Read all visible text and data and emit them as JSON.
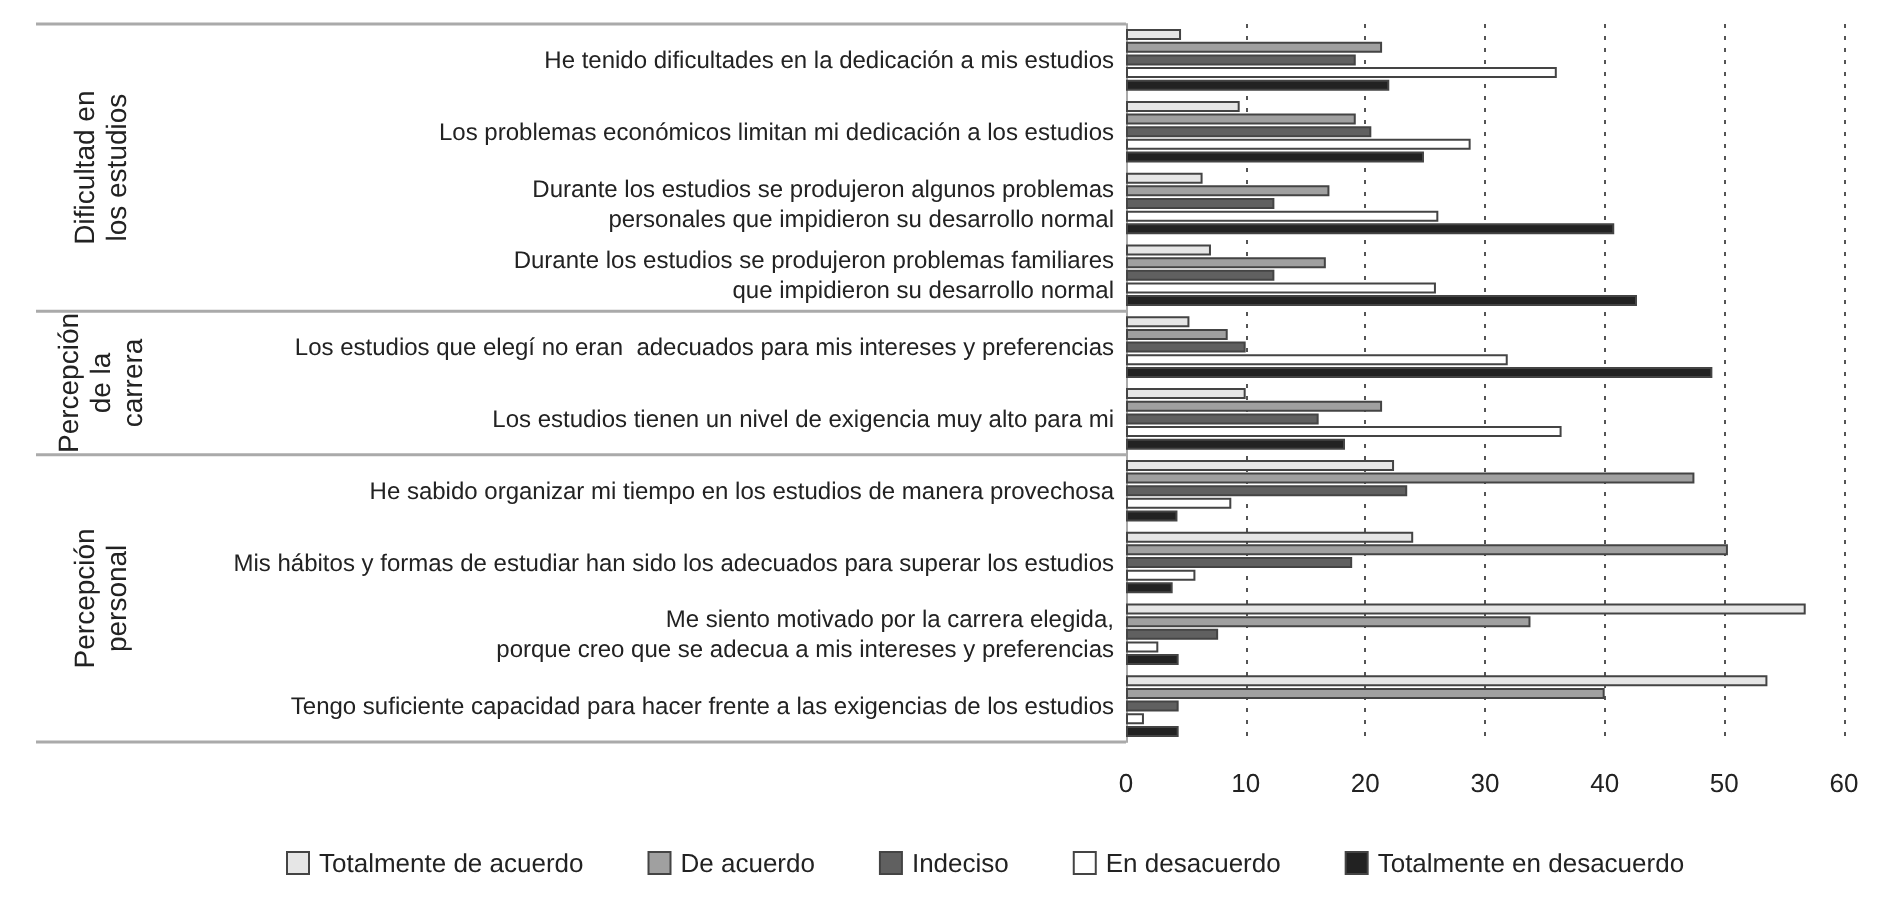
{
  "chart_data": {
    "type": "bar",
    "orientation": "horizontal",
    "categories": [
      "He tenido dificultades en la dedicación a mis estudios",
      "Los problemas económicos limitan mi dedicación a los estudios",
      "Durante los estudios se produjeron algunos problemas\npersonales que impidieron su desarrollo normal",
      "Durante los estudios se produjeron problemas familiares\nque impidieron su desarrollo normal",
      "Los estudios que elegí no eran  adecuados para mis intereses y preferencias",
      "Los estudios tienen un nivel de exigencia muy alto para mi",
      "He sabido organizar mi tiempo en los estudios de manera provechosa",
      "Mis hábitos y formas de estudiar han sido los adecuados para superar los estudios",
      "Me siento motivado por la carrera elegida,\nporque creo que se adecua a mis intereses y preferencias",
      "Tengo suficiente capacidad para hacer frente a las exigencias de los estudios"
    ],
    "series": [
      {
        "name": "Totalmente de acuerdo",
        "color": "#e6e6e6",
        "values": [
          4.6,
          9.5,
          6.4,
          7.1,
          5.3,
          10.0,
          22.4,
          24.0,
          56.8,
          53.6
        ]
      },
      {
        "name": "De acuerdo",
        "color": "#a0a0a0",
        "values": [
          21.4,
          19.2,
          17.0,
          16.7,
          8.5,
          21.4,
          47.5,
          50.3,
          33.8,
          40.0
        ]
      },
      {
        "name": "Indeciso",
        "color": "#606060",
        "values": [
          19.2,
          20.5,
          12.4,
          12.4,
          10.0,
          16.1,
          23.5,
          18.9,
          7.7,
          4.4
        ]
      },
      {
        "name": "En desacuerdo",
        "color": "#ffffff",
        "values": [
          36.0,
          28.8,
          26.1,
          25.9,
          31.9,
          36.4,
          8.8,
          5.8,
          2.7,
          1.5
        ]
      },
      {
        "name": "Totalmente en desacuerdo",
        "color": "#222222",
        "values": [
          22.0,
          24.9,
          40.8,
          42.7,
          49.0,
          18.3,
          4.3,
          3.9,
          4.4,
          4.4
        ]
      }
    ],
    "xlim": [
      0,
      60
    ],
    "xticks": [
      0,
      10,
      20,
      30,
      40,
      50,
      60
    ],
    "grid": "x",
    "legend": "bottom",
    "annotations": [
      "Dificultad en\nlos estudios",
      "Percepción\nde la\ncarrera",
      "Percepción\npersonal"
    ]
  }
}
